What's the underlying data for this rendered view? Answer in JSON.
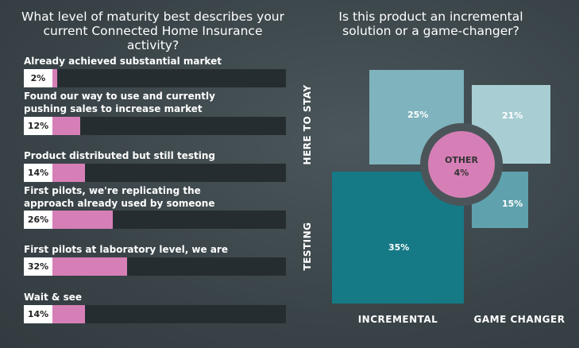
{
  "left_chart": {
    "title": "What level of maturity best describes your current Connected Home Insurance activity?",
    "rows": [
      {
        "label": "Already achieved substantial market penetration",
        "pct_label": "2%",
        "value": 2
      },
      {
        "label": "Found our way to use and currently pushing sales to increase market penetration",
        "pct_label": "12%",
        "value": 12
      },
      {
        "label": "Product distributed but still testing",
        "pct_label": "14%",
        "value": 14
      },
      {
        "label": "First pilots, we're replicating the approach already used by someone else",
        "pct_label": "26%",
        "value": 26
      },
      {
        "label": "First pilots at laboratory level, we are the pioneer",
        "pct_label": "32%",
        "value": 32
      },
      {
        "label": "Wait & see",
        "pct_label": "14%",
        "value": 14
      }
    ]
  },
  "right_chart": {
    "title": "Is this product an incremental solution or a game-changer?",
    "y_axis": {
      "top": "HERE TO STAY",
      "bottom": "TESTING"
    },
    "x_axis": {
      "left": "INCREMENTAL",
      "right": "GAME CHANGER"
    },
    "cells": {
      "incremental_here_to_stay": "25%",
      "gamechanger_here_to_stay": "21%",
      "incremental_testing": "35%",
      "gamechanger_testing": "15%"
    },
    "center": {
      "label": "OTHER",
      "value": "4%"
    }
  },
  "chart_data": [
    {
      "type": "bar",
      "title": "What level of maturity best describes your current Connected Home Insurance activity?",
      "categories": [
        "Already achieved substantial market penetration",
        "Found our way to use and currently pushing sales to increase market penetration",
        "Product distributed but still testing",
        "First pilots, we're replicating the approach already used by someone else",
        "First pilots at laboratory level, we are the pioneer",
        "Wait & see"
      ],
      "values": [
        2,
        12,
        14,
        26,
        32,
        14
      ],
      "ylim": [
        0,
        100
      ]
    },
    {
      "type": "heatmap",
      "title": "Is this product an incremental solution or a game-changer?",
      "x": [
        "INCREMENTAL",
        "GAME CHANGER"
      ],
      "y": [
        "HERE TO STAY",
        "TESTING"
      ],
      "values": [
        [
          25,
          21
        ],
        [
          35,
          15
        ]
      ],
      "other": {
        "label": "OTHER",
        "value": 4
      }
    }
  ],
  "colors": {
    "bar_fill": "#d67fb7",
    "track": "#252d31",
    "quad_incremental_stay": "#7fb3bd",
    "quad_gamechanger_stay": "#a8ced3",
    "quad_incremental_testing": "#157a86",
    "quad_gamechanger_testing": "#5fa2ad",
    "center_circle": "#d67fb7",
    "center_ring": "#4b5559"
  }
}
